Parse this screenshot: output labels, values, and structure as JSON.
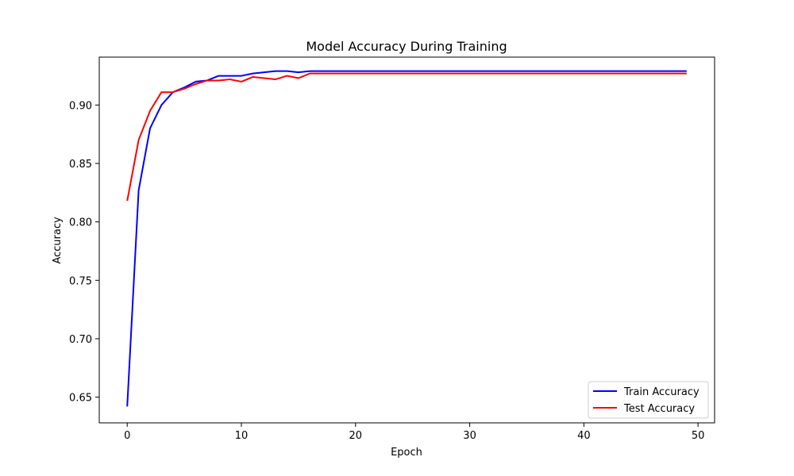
{
  "chart_data": {
    "type": "line",
    "title": "Model Accuracy During Training",
    "xlabel": "Epoch",
    "ylabel": "Accuracy",
    "xlim": [
      -2.45,
      51.45
    ],
    "ylim": [
      0.628,
      0.941
    ],
    "xticks": [
      0,
      10,
      20,
      30,
      40,
      50
    ],
    "yticks": [
      0.65,
      0.7,
      0.75,
      0.8,
      0.85,
      0.9
    ],
    "ytick_labels": [
      "0.65",
      "0.70",
      "0.75",
      "0.80",
      "0.85",
      "0.90"
    ],
    "grid": false,
    "legend_position": "lower-right",
    "x": [
      0,
      1,
      2,
      3,
      4,
      5,
      6,
      7,
      8,
      9,
      10,
      11,
      12,
      13,
      14,
      15,
      16,
      17,
      18,
      19,
      20,
      21,
      22,
      23,
      24,
      25,
      26,
      27,
      28,
      29,
      30,
      31,
      32,
      33,
      34,
      35,
      36,
      37,
      38,
      39,
      40,
      41,
      42,
      43,
      44,
      45,
      46,
      47,
      48,
      49
    ],
    "series": [
      {
        "name": "Train Accuracy",
        "color": "#0000ff",
        "values": [
          0.642,
          0.827,
          0.88,
          0.9,
          0.911,
          0.915,
          0.92,
          0.921,
          0.925,
          0.925,
          0.925,
          0.927,
          0.928,
          0.929,
          0.929,
          0.928,
          0.929,
          0.929,
          0.929,
          0.929,
          0.929,
          0.929,
          0.929,
          0.929,
          0.929,
          0.929,
          0.929,
          0.929,
          0.929,
          0.929,
          0.929,
          0.929,
          0.929,
          0.929,
          0.929,
          0.929,
          0.929,
          0.929,
          0.929,
          0.929,
          0.929,
          0.929,
          0.929,
          0.929,
          0.929,
          0.929,
          0.929,
          0.929,
          0.929,
          0.929
        ]
      },
      {
        "name": "Test Accuracy",
        "color": "#ff0000",
        "values": [
          0.818,
          0.87,
          0.895,
          0.911,
          0.911,
          0.914,
          0.918,
          0.921,
          0.921,
          0.922,
          0.92,
          0.924,
          0.923,
          0.922,
          0.925,
          0.923,
          0.927,
          0.927,
          0.927,
          0.927,
          0.927,
          0.927,
          0.927,
          0.927,
          0.927,
          0.927,
          0.927,
          0.927,
          0.927,
          0.927,
          0.927,
          0.927,
          0.927,
          0.927,
          0.927,
          0.927,
          0.927,
          0.927,
          0.927,
          0.927,
          0.927,
          0.927,
          0.927,
          0.927,
          0.927,
          0.927,
          0.927,
          0.927,
          0.927,
          0.927
        ]
      }
    ]
  }
}
